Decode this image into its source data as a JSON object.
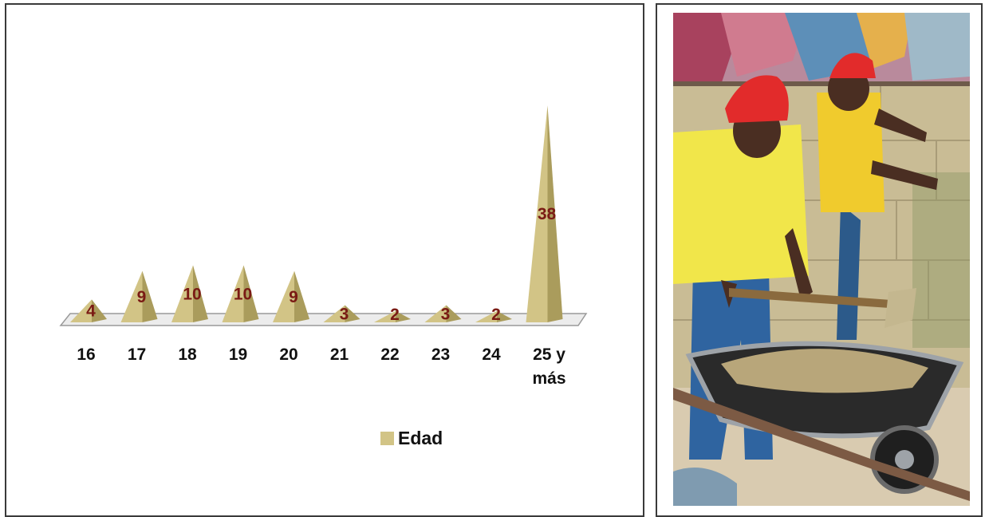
{
  "chart_data": {
    "type": "bar",
    "categories": [
      "16",
      "17",
      "18",
      "19",
      "20",
      "21",
      "22",
      "23",
      "24",
      "25 y más"
    ],
    "series": [
      {
        "name": "Edad",
        "values": [
          4,
          9,
          10,
          10,
          9,
          3,
          2,
          3,
          2,
          38
        ]
      }
    ],
    "data_labels": [
      "4",
      "9",
      "10",
      "10",
      "9",
      "3",
      "2",
      "3",
      "2",
      "38"
    ],
    "bar_shape": "pyramid",
    "ylim": [
      0,
      40
    ],
    "grid": false,
    "legend": "bottom-right",
    "colors": {
      "bar": "#d2c486",
      "bar_shade": "#aa9c5c",
      "label": "#7a1a14",
      "floor": "#e9e9e9"
    }
  },
  "photo": {
    "subject": "two construction workers in red hard hats and yellow shirts mixing mortar beside a wheelbarrow"
  }
}
